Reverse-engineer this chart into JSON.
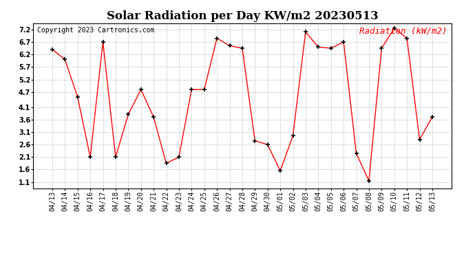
{
  "title": "Solar Radiation per Day KW/m2 20230513",
  "copyright": "Copyright 2023 Cartronics.com",
  "legend_label": "Radiation (kW/m2)",
  "dates": [
    "04/13",
    "04/14",
    "04/15",
    "04/16",
    "04/17",
    "04/18",
    "04/19",
    "04/20",
    "04/21",
    "04/22",
    "04/23",
    "04/24",
    "04/25",
    "04/26",
    "04/27",
    "04/28",
    "04/29",
    "04/30",
    "05/01",
    "05/02",
    "05/03",
    "05/04",
    "05/05",
    "05/06",
    "05/07",
    "05/08",
    "05/09",
    "05/10",
    "05/11",
    "05/12",
    "05/13"
  ],
  "values": [
    6.4,
    6.0,
    4.5,
    2.1,
    6.7,
    2.1,
    3.8,
    4.8,
    3.7,
    1.85,
    2.1,
    4.8,
    4.8,
    6.85,
    6.55,
    6.45,
    2.75,
    2.6,
    1.55,
    2.95,
    7.1,
    6.5,
    6.45,
    6.7,
    2.25,
    1.15,
    6.45,
    7.25,
    6.85,
    2.8,
    3.7
  ],
  "line_color": "red",
  "marker_color": "black",
  "background_color": "white",
  "grid_color": "#bbbbbb",
  "yticks": [
    1.1,
    1.6,
    2.1,
    2.6,
    3.1,
    3.6,
    4.1,
    4.7,
    5.2,
    5.7,
    6.2,
    6.7,
    7.2
  ],
  "ylim": [
    0.85,
    7.45
  ],
  "title_fontsize": 12,
  "copyright_fontsize": 7,
  "legend_fontsize": 9,
  "tick_fontsize": 7
}
